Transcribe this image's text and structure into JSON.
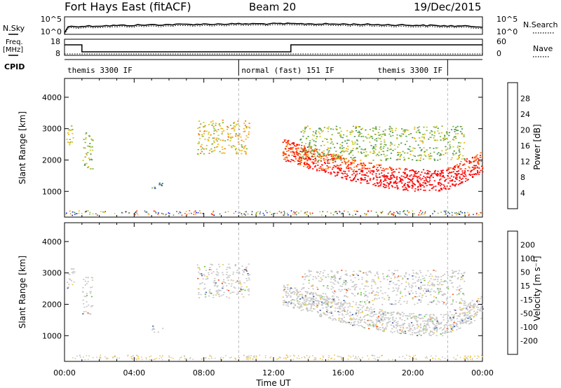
{
  "header": {
    "radar": "Fort Hays East (fitACF)",
    "beam": "Beam 20",
    "date": "19/Dec/2015"
  },
  "noise_panel": {
    "left_label": "N.Sky",
    "left_ticks": [
      "10^5",
      "10^0"
    ],
    "right_label": "N.Search",
    "right_ticks": [
      "10^5",
      "10^0"
    ]
  },
  "freq_panel": {
    "left_label_1": "Freq.",
    "left_label_2": "[MHz]",
    "left_ticks": [
      "18",
      "8"
    ],
    "right_label": "Nave",
    "right_ticks": [
      "60",
      "0"
    ]
  },
  "cpid": {
    "label": "CPID",
    "segments": [
      {
        "text": "themis 3300 IF",
        "start": 0,
        "end": 10
      },
      {
        "text": "normal (fast) 151 IF",
        "start": 10,
        "end": 22
      },
      {
        "text": "themis 3300 IF",
        "start": 22,
        "end": 24
      }
    ]
  },
  "power_colorbar": {
    "label": "Power [dB]",
    "ticks": [
      "28",
      "24",
      "20",
      "16",
      "12",
      "8",
      "4"
    ],
    "colors": [
      "#0000ff",
      "#1e3caa",
      "#2d6e6e",
      "#4b9650",
      "#7db43c",
      "#c8c828",
      "#f0b414",
      "#ff7800",
      "#ff3c00",
      "#ff0000"
    ]
  },
  "velocity_colorbar": {
    "label": "Velocity [m s⁻¹]",
    "ticks": [
      "200",
      "100",
      "50",
      "15",
      "-15",
      "-50",
      "-100",
      "-200"
    ],
    "colors": [
      "#2828c8",
      "#3c5aa0",
      "#3c8c50",
      "#64c83c",
      "#c8c8c8",
      "#f0c850",
      "#f09628",
      "#f05a1e",
      "#ff2814",
      "#e60000"
    ]
  },
  "time_ticks": [
    "00:00",
    "04:00",
    "08:00",
    "12:00",
    "16:00",
    "20:00",
    "00:00"
  ],
  "x_axis_label": "Time UT",
  "chart_data": [
    {
      "type": "heatmap",
      "title": "Power",
      "ylabel": "Slant Range [km]",
      "xlabel": "Time UT",
      "xlim": [
        0,
        24
      ],
      "ylim": [
        180,
        4600
      ],
      "y_ticks": [
        1000,
        2000,
        3000,
        4000
      ],
      "colorbar": {
        "label": "Power [dB]",
        "range": [
          0,
          30
        ]
      },
      "dashed_lines_hours": [
        10,
        22
      ],
      "regions": [
        {
          "t": [
            0.1,
            0.55
          ],
          "r": [
            2500,
            3200
          ],
          "value": 16
        },
        {
          "t": [
            1.0,
            1.6
          ],
          "r": [
            1700,
            2900
          ],
          "value": 14
        },
        {
          "t": [
            5.0,
            5.6
          ],
          "r": [
            1100,
            1350
          ],
          "value": 8
        },
        {
          "t": [
            7.6,
            10.6
          ],
          "r": [
            2200,
            3300
          ],
          "value": 18
        },
        {
          "t": [
            12.5,
            24.0
          ],
          "r": [
            900,
            2400
          ],
          "value": 26
        },
        {
          "t": [
            13.5,
            23.0
          ],
          "r": [
            2000,
            3100
          ],
          "value": 14
        }
      ]
    },
    {
      "type": "heatmap",
      "title": "Velocity",
      "ylabel": "Slant Range [km]",
      "xlabel": "Time UT",
      "xlim": [
        0,
        24
      ],
      "ylim": [
        180,
        4600
      ],
      "y_ticks": [
        1000,
        2000,
        3000,
        4000
      ],
      "colorbar": {
        "label": "Velocity [m s⁻¹]",
        "range": [
          -250,
          250
        ]
      },
      "dashed_lines_hours": [
        10,
        22
      ],
      "regions": [
        {
          "t": [
            0.1,
            0.55
          ],
          "r": [
            2500,
            3200
          ],
          "value": 0
        },
        {
          "t": [
            1.0,
            1.6
          ],
          "r": [
            1700,
            2900
          ],
          "value": 0
        },
        {
          "t": [
            5.0,
            5.6
          ],
          "r": [
            1100,
            1350
          ],
          "value": 0
        },
        {
          "t": [
            7.6,
            10.6
          ],
          "r": [
            2200,
            3300
          ],
          "value": 0
        },
        {
          "t": [
            12.5,
            24.0
          ],
          "r": [
            900,
            2400
          ],
          "value": 0
        },
        {
          "t": [
            13.5,
            23.0
          ],
          "r": [
            2000,
            3100
          ],
          "value": 0
        }
      ]
    }
  ]
}
